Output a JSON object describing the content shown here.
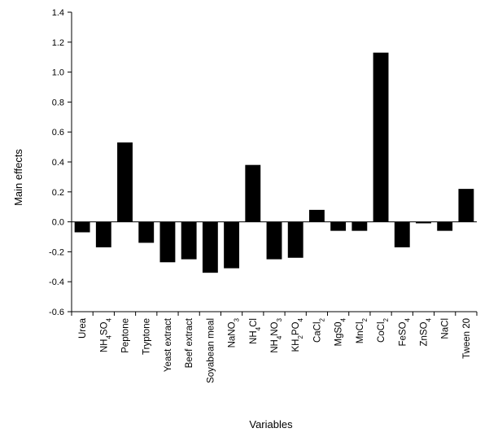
{
  "chart_data": {
    "type": "bar",
    "xlabel": "Variables",
    "ylabel": "Main effects",
    "ylim": [
      -0.6,
      1.4
    ],
    "yticks": [
      "1.4",
      "1.2",
      "1.0",
      "0.8",
      "0.6",
      "0.4",
      "0.2",
      "0.0",
      "-0.2",
      "-0.4",
      "-0.6"
    ],
    "ytick_values": [
      1.4,
      1.2,
      1.0,
      0.8,
      0.6,
      0.4,
      0.2,
      0.0,
      -0.2,
      -0.4,
      -0.6
    ],
    "bar_color": "#000000",
    "grid": false,
    "categories": [
      {
        "base": "Urea"
      },
      {
        "base": "NH",
        "s1": "4",
        "m": "SO",
        "s2": "4"
      },
      {
        "base": "Peptone"
      },
      {
        "base": "Tryptone"
      },
      {
        "base": "Yeast extract"
      },
      {
        "base": "Beef extract"
      },
      {
        "base": "Soyabean meal"
      },
      {
        "base": "NaNO",
        "s1": "3"
      },
      {
        "base": "NH",
        "s1": "4",
        "m": "Cl"
      },
      {
        "base": "NH",
        "s1": "4",
        "m": "NO",
        "s2": "3"
      },
      {
        "base": "KH",
        "s1": "2",
        "m": "PO",
        "s2": "4"
      },
      {
        "base": "CaCl",
        "s1": "2"
      },
      {
        "base": "MgS0",
        "s1": "4"
      },
      {
        "base": "MnCl",
        "s1": "2"
      },
      {
        "base": "CoCl",
        "s1": "2"
      },
      {
        "base": "FeSO",
        "s1": "4"
      },
      {
        "base": "ZnSO",
        "s1": "4"
      },
      {
        "base": "NaCl"
      },
      {
        "base": "Tween 20"
      }
    ],
    "values": [
      -0.07,
      -0.17,
      0.53,
      -0.14,
      -0.27,
      -0.25,
      -0.34,
      -0.31,
      0.38,
      -0.25,
      -0.24,
      0.08,
      -0.06,
      -0.06,
      1.13,
      -0.17,
      -0.01,
      -0.06,
      0.22
    ]
  }
}
